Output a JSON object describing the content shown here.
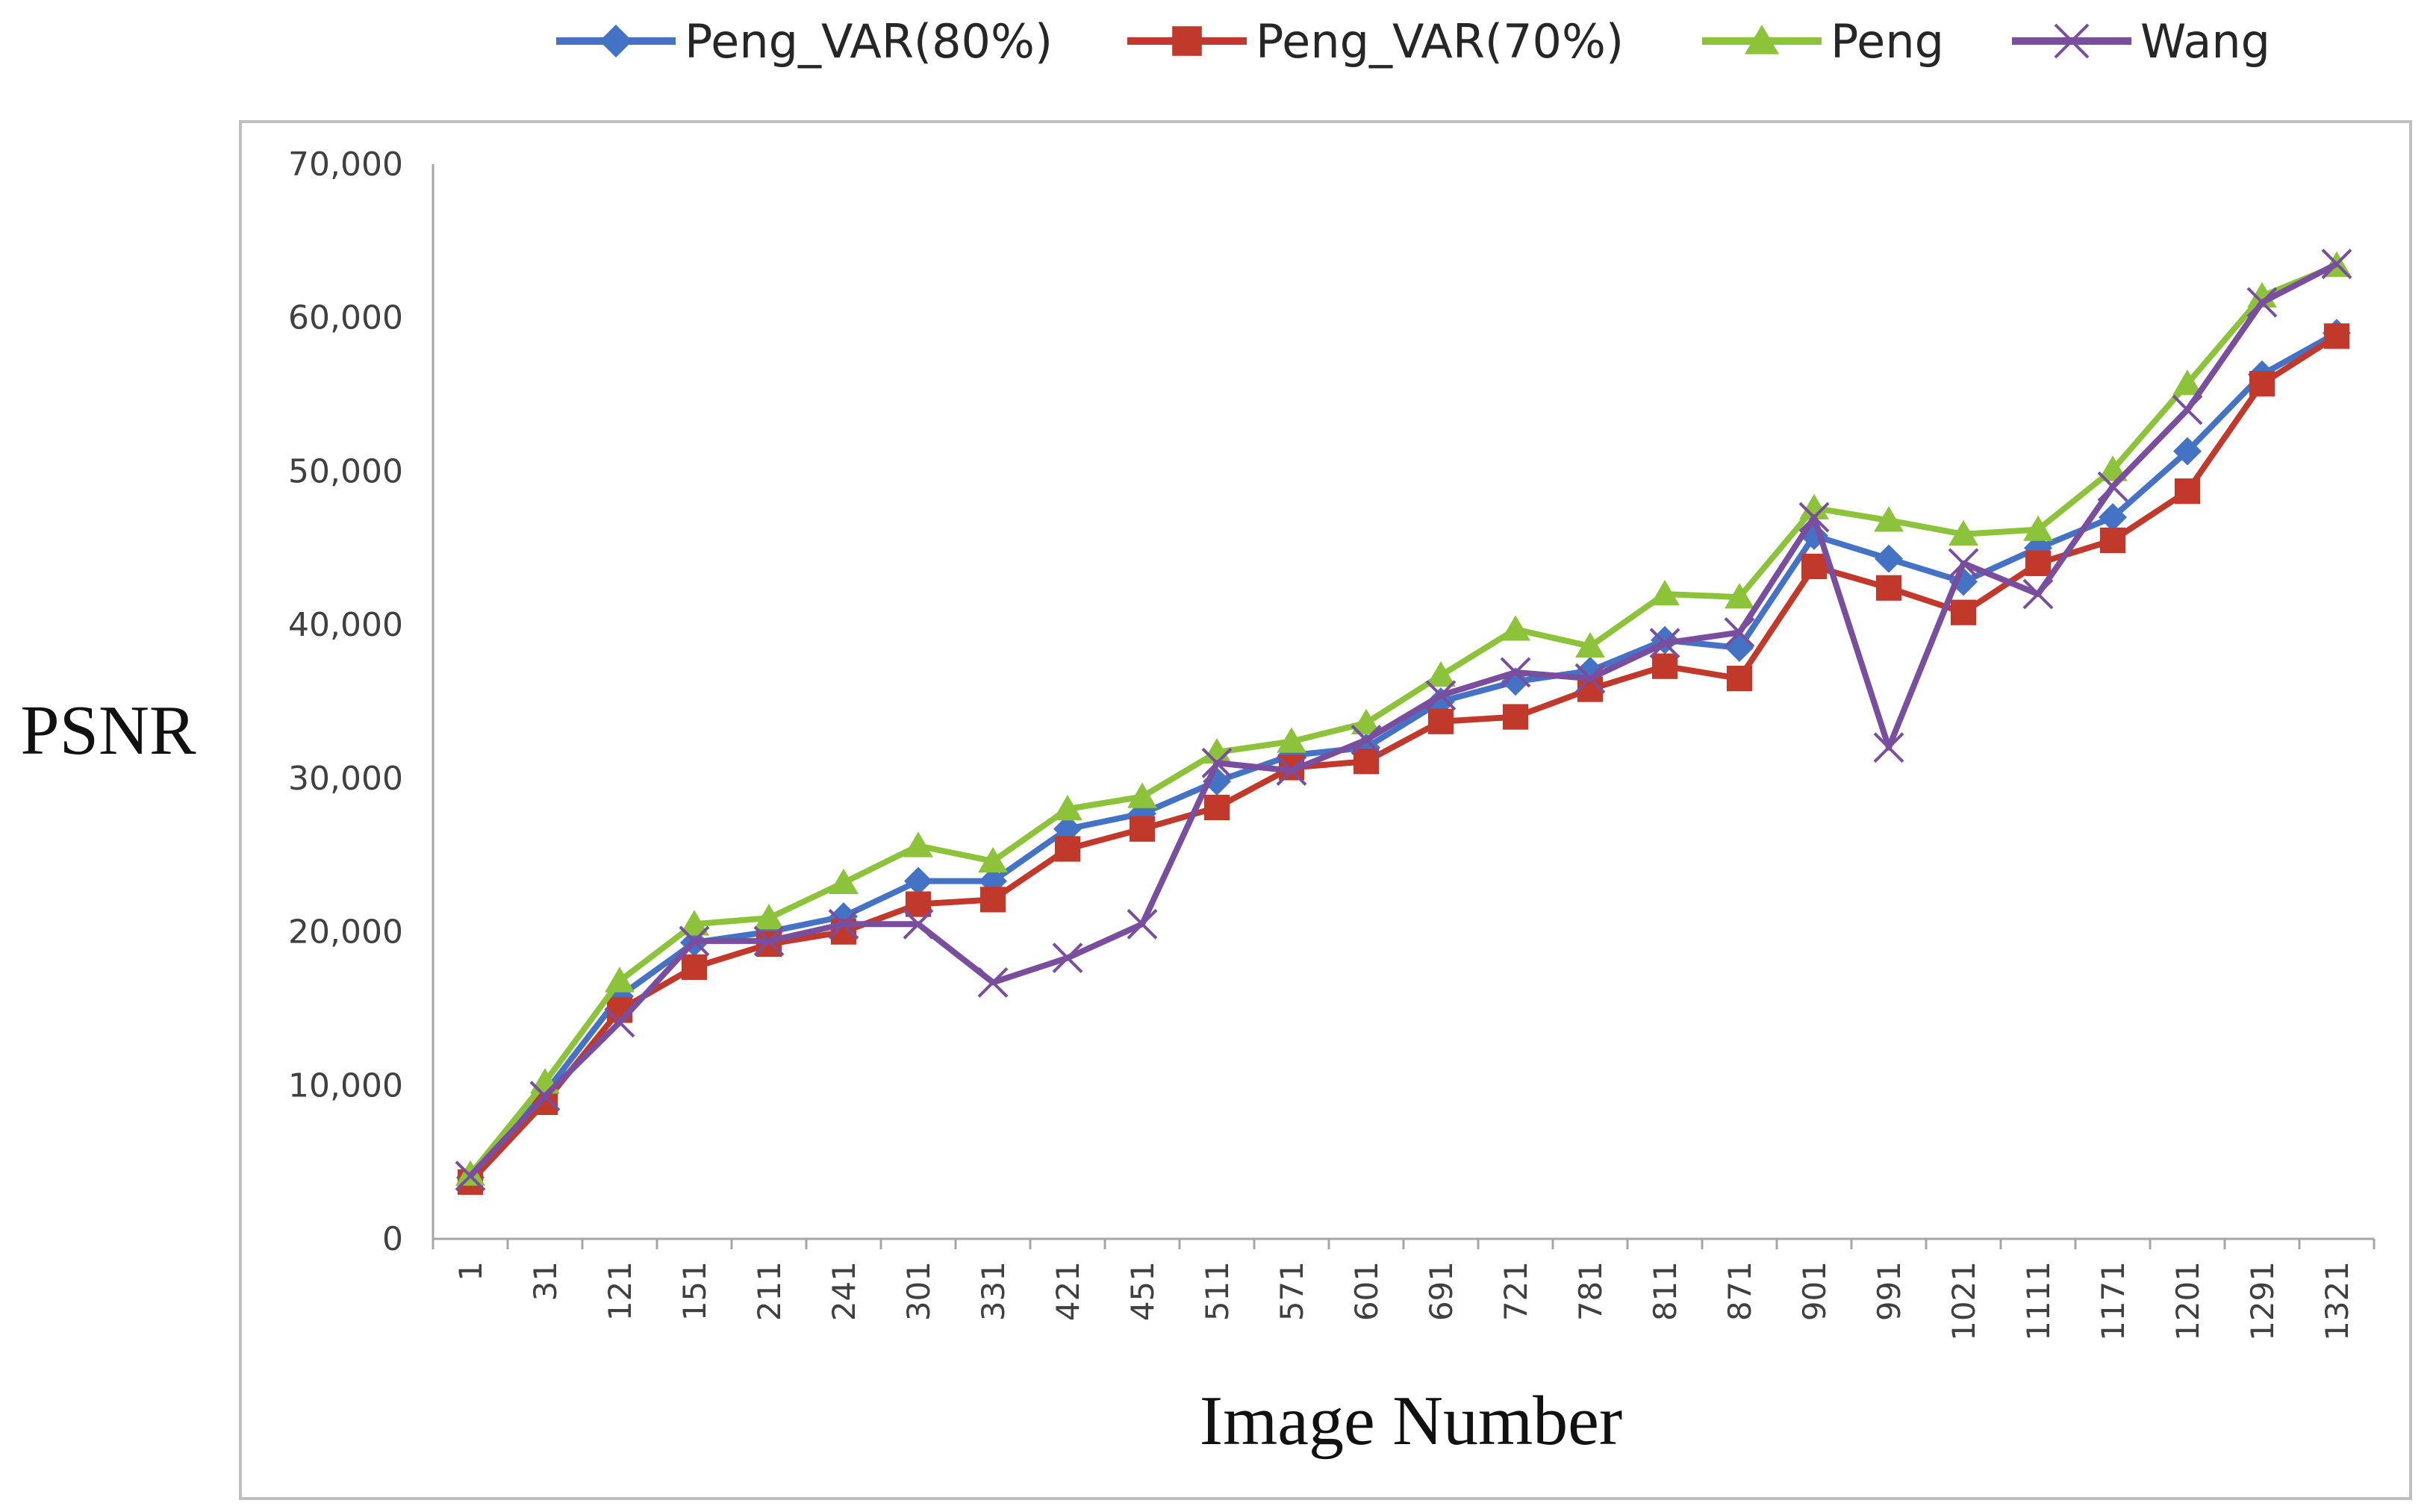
{
  "chart_data": {
    "type": "line",
    "title": "",
    "xlabel": "Image Number",
    "ylabel": "PSNR",
    "ylim": [
      0,
      70000
    ],
    "yticks": [
      0,
      10000,
      20000,
      30000,
      40000,
      50000,
      60000,
      70000
    ],
    "ytick_labels": [
      "0",
      "10,000",
      "20,000",
      "30,000",
      "40,000",
      "50,000",
      "60,000",
      "70,000"
    ],
    "categories": [
      "1",
      "31",
      "121",
      "151",
      "211",
      "241",
      "301",
      "331",
      "421",
      "451",
      "511",
      "571",
      "601",
      "691",
      "721",
      "781",
      "811",
      "871",
      "901",
      "991",
      "1021",
      "1111",
      "1171",
      "1201",
      "1291",
      "1321"
    ],
    "legend_position": "top",
    "series": [
      {
        "name": "Peng_VAR(80%)",
        "color": "#4472C4",
        "marker": "diamond",
        "values": [
          4000,
          9500,
          15800,
          19300,
          20000,
          21000,
          23300,
          23300,
          26700,
          27700,
          29800,
          31500,
          32000,
          35000,
          36300,
          37000,
          39000,
          38500,
          45800,
          44300,
          42800,
          45000,
          47000,
          51300,
          56300,
          59000
        ]
      },
      {
        "name": "Peng_VAR(70%)",
        "color": "#C0392B",
        "marker": "square",
        "values": [
          3700,
          8900,
          14900,
          17700,
          19200,
          20000,
          21800,
          22100,
          25400,
          26700,
          28100,
          30700,
          31100,
          33700,
          34000,
          35800,
          37300,
          36500,
          43800,
          42400,
          40800,
          44000,
          45500,
          48700,
          55700,
          58800
        ]
      },
      {
        "name": "Peng",
        "color": "#8DC33A",
        "marker": "triangle",
        "values": [
          4200,
          10200,
          16800,
          20500,
          20900,
          23200,
          25600,
          24600,
          28000,
          28800,
          31700,
          32400,
          33600,
          36700,
          39700,
          38600,
          42000,
          41800,
          47600,
          46800,
          45900,
          46200,
          50100,
          55700,
          61400,
          63400
        ]
      },
      {
        "name": "Wang",
        "color": "#7A4E9E",
        "marker": "x",
        "values": [
          4100,
          9300,
          14100,
          19400,
          19400,
          20500,
          20500,
          16700,
          18300,
          20500,
          31000,
          30500,
          32500,
          35400,
          36900,
          36500,
          38800,
          39500,
          47000,
          32000,
          44000,
          42000,
          49000,
          54000,
          61000,
          63500
        ]
      }
    ]
  }
}
